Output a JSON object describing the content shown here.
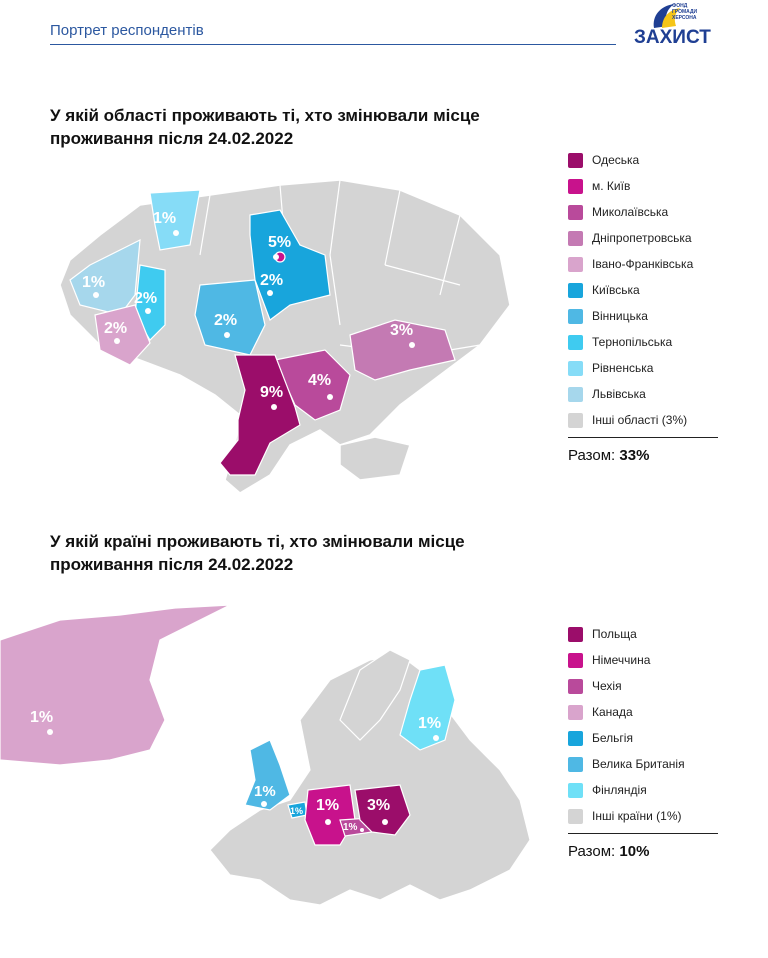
{
  "header": {
    "title": "Портрет респондентів",
    "logo_text": "ЗАХИСТ",
    "logo_small": "ФОНД ГРОМАДИ ХЕРСОНА"
  },
  "colors": {
    "brand_blue": "#1f3f93",
    "grey_region": "#d4d4d4",
    "odeska": "#9b0d6a",
    "kyiv_city": "#c8128c",
    "mykolaivska": "#b94a9b",
    "dnipro": "#c47ab3",
    "ivano": "#d9a4cc",
    "kyivska": "#18a5dc",
    "vinnytska": "#4fb8e4",
    "ternopilska": "#3fcbf0",
    "rivnenska": "#86dcf7",
    "lvivska": "#a6d7ec"
  },
  "section1": {
    "question": "У якій області проживають ті, хто змінювали місце проживання після 24.02.2022",
    "legend": [
      {
        "label": "Одеська",
        "color": "#9b0d6a"
      },
      {
        "label": "м. Київ",
        "color": "#c8128c"
      },
      {
        "label": "Миколаївська",
        "color": "#b94a9b"
      },
      {
        "label": "Дніпропетровська",
        "color": "#c47ab3"
      },
      {
        "label": "Івано-Франківська",
        "color": "#d9a4cc"
      },
      {
        "label": "Київська",
        "color": "#18a5dc"
      },
      {
        "label": "Вінницька",
        "color": "#4fb8e4"
      },
      {
        "label": "Тернопільська",
        "color": "#3fcbf0"
      },
      {
        "label": "Рівненська",
        "color": "#86dcf7"
      },
      {
        "label": "Львівська",
        "color": "#a6d7ec"
      },
      {
        "label": "Інші області (3%)",
        "color": "#d4d4d4"
      }
    ],
    "total_label": "Разом:",
    "total_value": "33%",
    "map_labels": {
      "odeska": "9%",
      "kyiv_city": "5%",
      "kyivska": "2%",
      "mykolaivska": "4%",
      "dnipro": "3%",
      "vinnytska": "2%",
      "ternopilska": "2%",
      "ivano": "2%",
      "lvivska": "1%",
      "rivnenska": "1%"
    }
  },
  "section2": {
    "question": "У якій країні проживають ті, хто змінювали місце проживання після 24.02.2022",
    "legend": [
      {
        "label": "Польща",
        "color": "#9b0d6a"
      },
      {
        "label": "Німеччина",
        "color": "#c8128c"
      },
      {
        "label": "Чехія",
        "color": "#b94a9b"
      },
      {
        "label": "Канада",
        "color": "#d9a4cc"
      },
      {
        "label": "Бельгія",
        "color": "#18a5dc"
      },
      {
        "label": "Велика Британія",
        "color": "#4fb8e4"
      },
      {
        "label": "Фінляндія",
        "color": "#6fe0f7"
      },
      {
        "label": "Інші країни (1%)",
        "color": "#d4d4d4"
      }
    ],
    "total_label": "Разом:",
    "total_value": "10%",
    "map_labels": {
      "poland": "3%",
      "germany": "1%",
      "czechia": "1%",
      "canada": "1%",
      "belgium": "1%",
      "uk": "1%",
      "finland": "1%"
    }
  }
}
